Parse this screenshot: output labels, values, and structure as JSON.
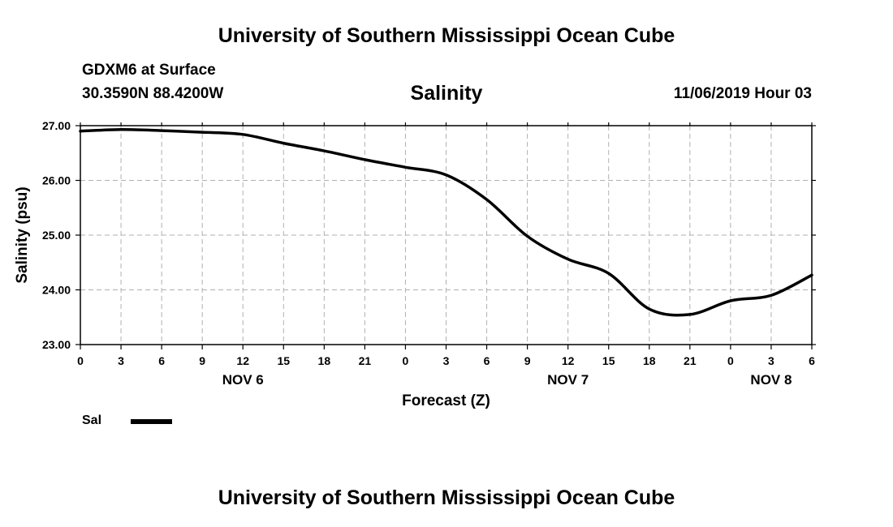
{
  "header": {
    "top_title": "University of Southern Mississippi Ocean Cube",
    "bottom_title": "University of Southern Mississippi Ocean Cube",
    "station": "GDXM6 at Surface",
    "coords": "30.3590N 88.4200W",
    "datetime": "11/06/2019 Hour 03"
  },
  "legend": {
    "label": "Sal"
  },
  "colors": {
    "line": "#000000",
    "grid": "#b0b0b0",
    "axis": "#000000"
  },
  "chart_data": {
    "type": "line",
    "title": "Salinity",
    "xlabel": "Forecast (Z)",
    "ylabel": "Salinity (psu)",
    "xlim": [
      0,
      54
    ],
    "ylim": [
      23.0,
      27.0
    ],
    "yticks": [
      "27.00",
      "26.00",
      "25.00",
      "24.00",
      "23.00"
    ],
    "ytick_values": [
      27,
      26,
      25,
      24,
      23
    ],
    "xtick_values": [
      0,
      3,
      6,
      9,
      12,
      15,
      18,
      21,
      24,
      27,
      30,
      33,
      36,
      39,
      42,
      45,
      48,
      51,
      54
    ],
    "xtick_labels": [
      "0",
      "3",
      "6",
      "9",
      "12",
      "15",
      "18",
      "21",
      "0",
      "3",
      "6",
      "9",
      "12",
      "15",
      "18",
      "21",
      "0",
      "3",
      "6"
    ],
    "date_labels": [
      {
        "label": "NOV 6",
        "at": 12
      },
      {
        "label": "NOV 7",
        "at": 36
      },
      {
        "label": "NOV 8",
        "at": 51
      }
    ],
    "grid": true,
    "series": [
      {
        "name": "Sal",
        "x": [
          0,
          3,
          6,
          9,
          12,
          15,
          18,
          21,
          24,
          27,
          30,
          33,
          36,
          39,
          42,
          45,
          48,
          51,
          54
        ],
        "values": [
          26.9,
          26.93,
          26.91,
          26.88,
          26.84,
          26.68,
          26.54,
          26.38,
          26.24,
          26.1,
          25.65,
          24.98,
          24.56,
          24.3,
          23.65,
          23.55,
          23.8,
          23.9,
          24.27
        ]
      }
    ]
  }
}
